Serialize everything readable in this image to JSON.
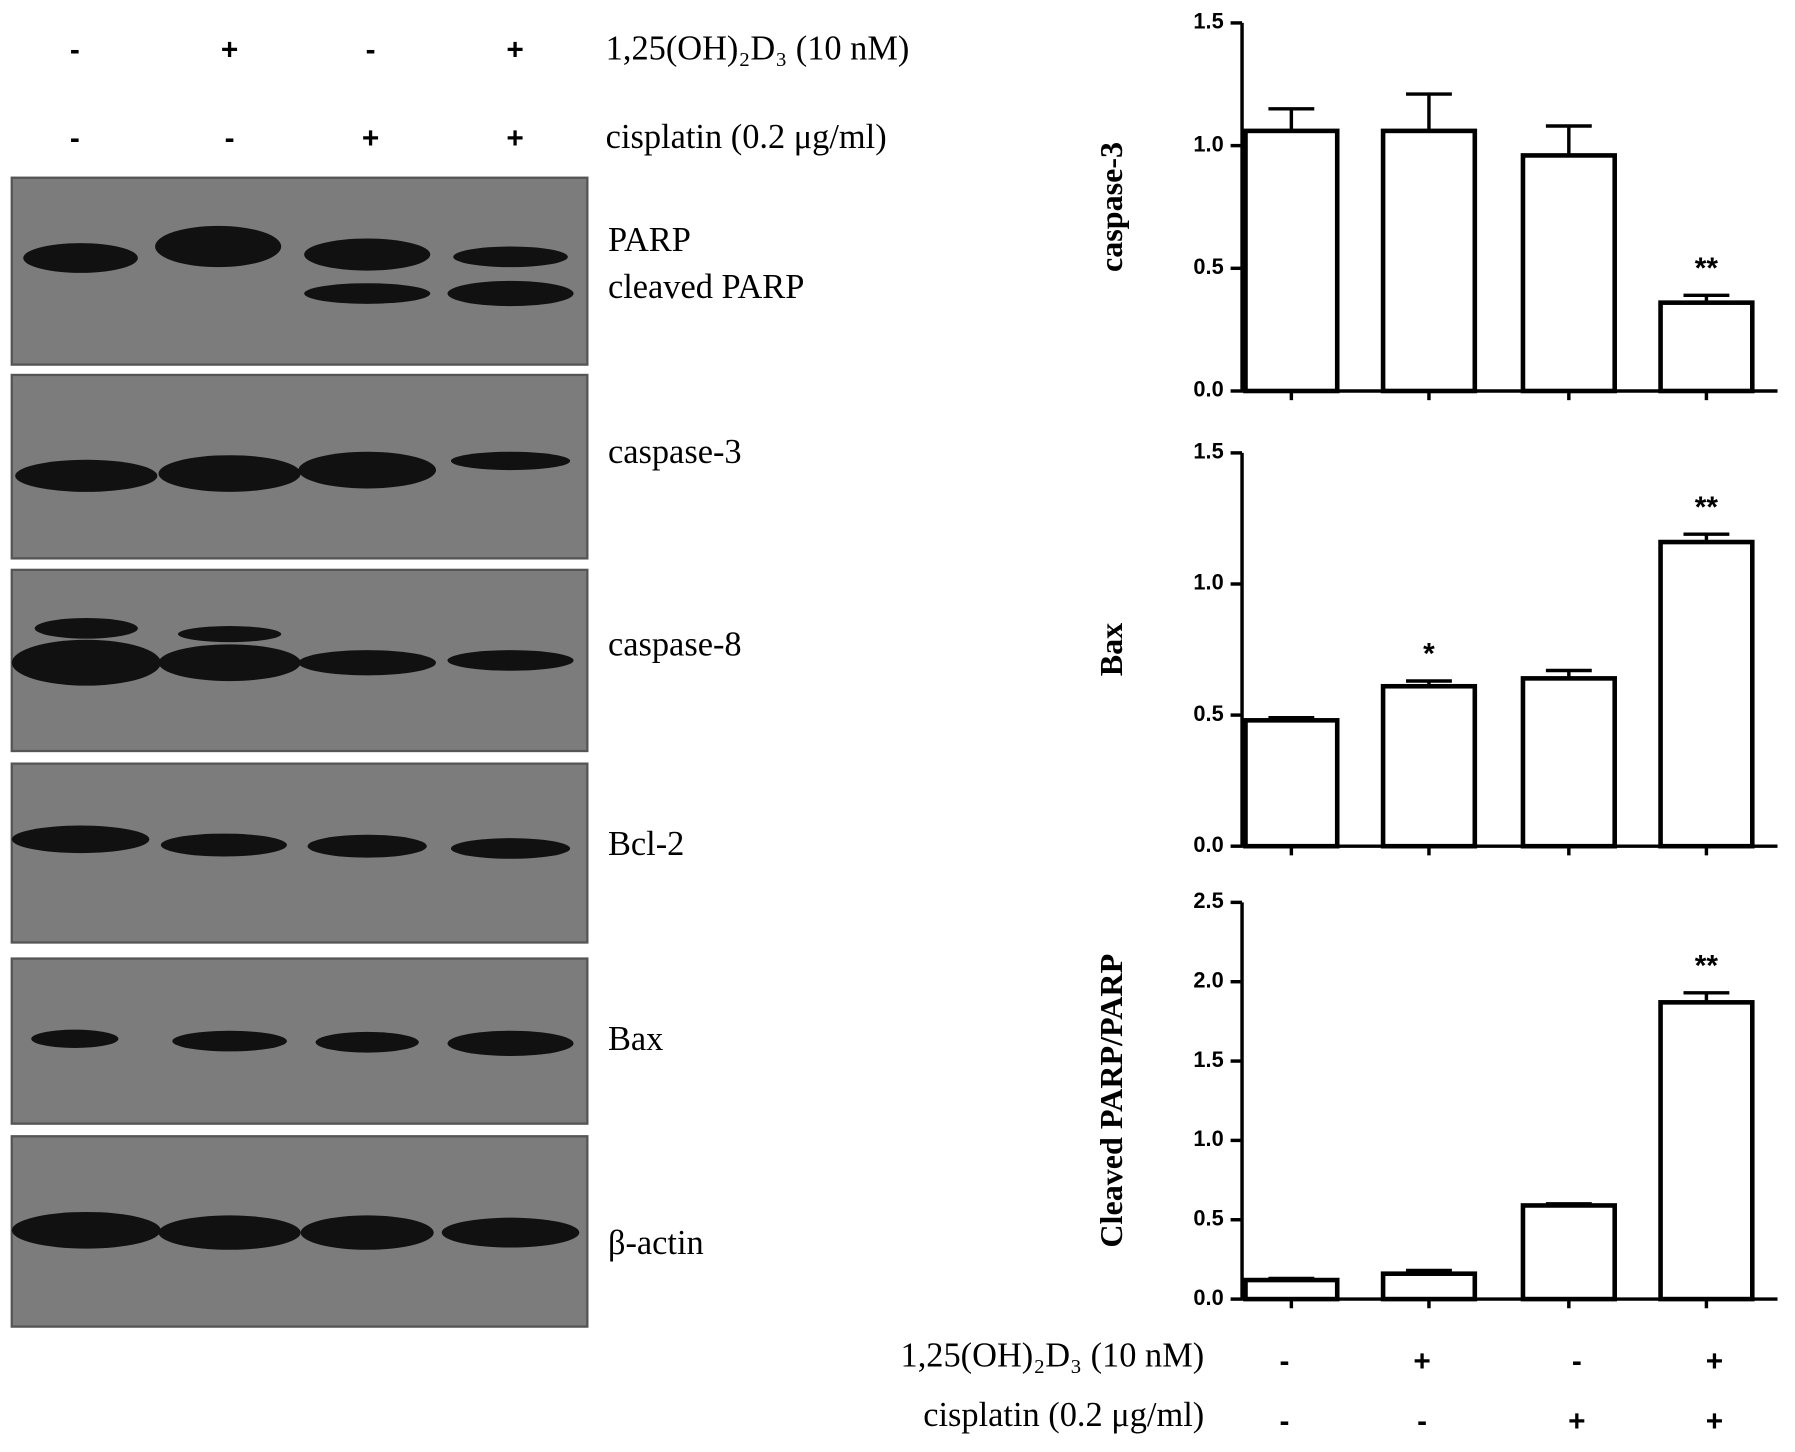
{
  "blot": {
    "treatments": [
      {
        "label": "1,25(OH)₂D₃ (10 nM)",
        "signs": [
          "-",
          "+",
          "-",
          "+"
        ]
      },
      {
        "label": "cisplatin (0.2 μg/ml)",
        "signs": [
          "-",
          "-",
          "+",
          "+"
        ]
      }
    ],
    "panels": [
      {
        "labels": [
          "PARP",
          "cleaved PARP"
        ]
      },
      {
        "labels": [
          "caspase-3"
        ]
      },
      {
        "labels": [
          "caspase-8"
        ]
      },
      {
        "labels": [
          "Bcl-2"
        ]
      },
      {
        "labels": [
          "Bax"
        ]
      },
      {
        "labels": [
          "β-actin"
        ]
      }
    ]
  },
  "bottom_treatments": [
    {
      "label": "1,25(OH)₂D₃ (10 nM)",
      "signs": [
        "-",
        "+",
        "-",
        "+"
      ]
    },
    {
      "label": "cisplatin (0.2 μg/ml)",
      "signs": [
        "-",
        "-",
        "+",
        "+"
      ]
    }
  ],
  "chart_data": [
    {
      "type": "bar",
      "ylabel": "caspase-3",
      "categories": [
        null,
        null,
        null,
        null
      ],
      "values": [
        1.06,
        1.06,
        0.96,
        0.36
      ],
      "errors": [
        0.09,
        0.15,
        0.12,
        0.03
      ],
      "significance": [
        null,
        null,
        null,
        "**"
      ],
      "color": "#ffffff",
      "ylim": [
        0,
        1.5
      ],
      "yticks": [
        {
          "value": 0,
          "label": "0.0"
        },
        {
          "value": 0.5,
          "label": "0.5"
        },
        {
          "value": 1,
          "label": "1.0"
        },
        {
          "value": 1.5,
          "label": "1.5"
        }
      ]
    },
    {
      "type": "bar",
      "ylabel": "Bax",
      "categories": [
        null,
        null,
        null,
        null
      ],
      "values": [
        0.48,
        0.61,
        0.64,
        1.16
      ],
      "errors": [
        0.01,
        0.02,
        0.03,
        0.03
      ],
      "significance": [
        null,
        "*",
        null,
        "**"
      ],
      "color": "#ffffff",
      "ylim": [
        0,
        1.5
      ],
      "yticks": [
        {
          "value": 0,
          "label": "0.0"
        },
        {
          "value": 0.5,
          "label": "0.5"
        },
        {
          "value": 1,
          "label": "1.0"
        },
        {
          "value": 1.5,
          "label": "1.5"
        }
      ]
    },
    {
      "type": "bar",
      "ylabel": "Cleaved PARP/PARP",
      "categories": [
        null,
        null,
        null,
        null
      ],
      "values": [
        0.12,
        0.16,
        0.59,
        1.87
      ],
      "errors": [
        0.01,
        0.02,
        0.01,
        0.06
      ],
      "significance": [
        null,
        null,
        null,
        "**"
      ],
      "color": "#ffffff",
      "ylim": [
        0,
        2.5
      ],
      "yticks": [
        {
          "value": 0,
          "label": "0.0"
        },
        {
          "value": 0.5,
          "label": "0.5"
        },
        {
          "value": 1,
          "label": "1.0"
        },
        {
          "value": 1.5,
          "label": "1.5"
        },
        {
          "value": 2,
          "label": "2.0"
        },
        {
          "value": 2.5,
          "label": "2.5"
        }
      ]
    }
  ]
}
